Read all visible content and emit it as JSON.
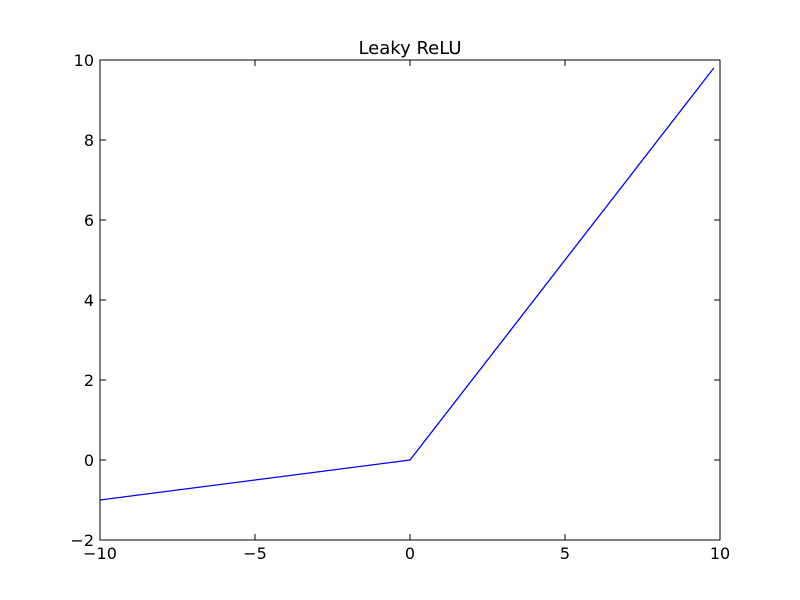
{
  "chart_data": {
    "type": "line",
    "title": "Leaky ReLU",
    "xlabel": "",
    "ylabel": "",
    "xlim": [
      -10,
      10
    ],
    "ylim": [
      -2,
      10
    ],
    "grid": false,
    "x_ticks": [
      -10,
      -5,
      0,
      5,
      10
    ],
    "y_ticks": [
      -2,
      0,
      2,
      4,
      6,
      8,
      10
    ],
    "x_tick_labels": [
      "−10",
      "−5",
      "0",
      "5",
      "10"
    ],
    "y_tick_labels": [
      "−2",
      "0",
      "2",
      "4",
      "6",
      "8",
      "10"
    ],
    "series": [
      {
        "color": "#0000ff",
        "x": [
          -10,
          0,
          9.8
        ],
        "y": [
          -1,
          0,
          9.8
        ]
      }
    ]
  }
}
